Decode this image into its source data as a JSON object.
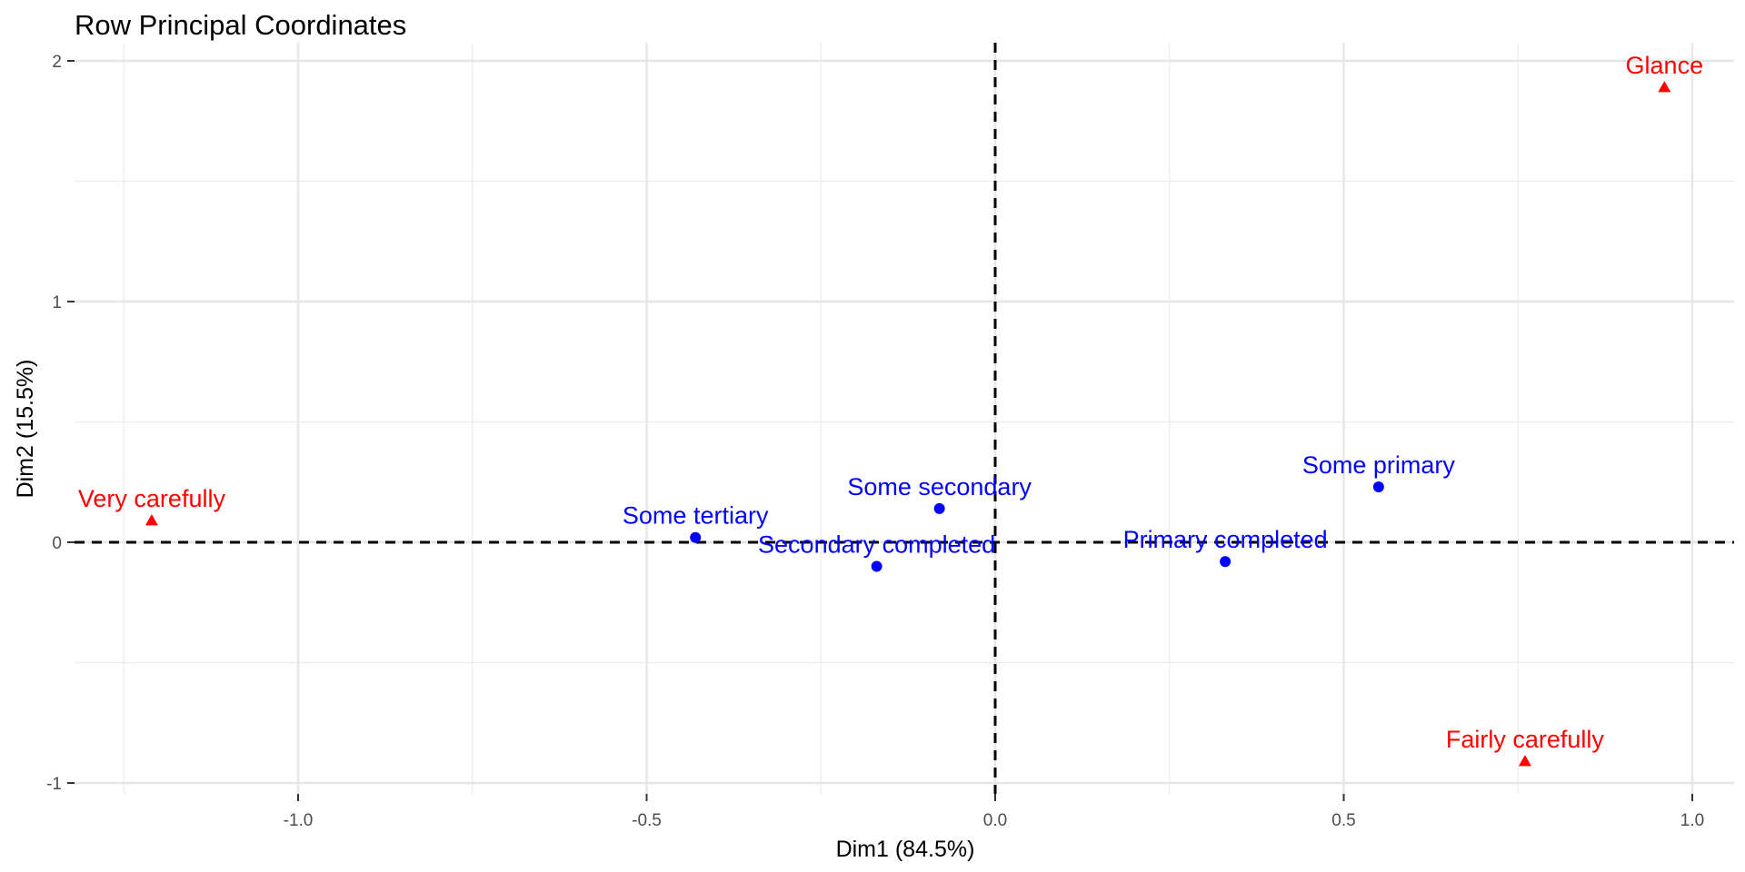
{
  "chart_data": {
    "type": "scatter",
    "title": "Row Principal Coordinates",
    "xlabel": "Dim1 (84.5%)",
    "ylabel": "Dim2 (15.5%)",
    "xlim": [
      -1.31,
      1.07
    ],
    "ylim": [
      -1.0,
      2.0
    ],
    "x_ticks": [
      -1.0,
      -0.5,
      0.0,
      0.5,
      1.0
    ],
    "x_tick_labels": [
      "-1.0",
      "-0.5",
      "0.0",
      "0.5",
      "1.0"
    ],
    "y_ticks": [
      -1,
      0,
      1,
      2
    ],
    "y_tick_labels": [
      "-1",
      "0",
      "1",
      "2"
    ],
    "grid": true,
    "reference_lines": {
      "x": 0,
      "y": 0,
      "style": "dashed"
    },
    "series": [
      {
        "marker": "circle",
        "color": "#0000ff",
        "points": [
          {
            "label": "Some primary",
            "x": 0.55,
            "y": 0.23
          },
          {
            "label": "Primary completed",
            "x": 0.33,
            "y": -0.08
          },
          {
            "label": "Some secondary",
            "x": -0.08,
            "y": 0.14
          },
          {
            "label": "Secondary completed",
            "x": -0.17,
            "y": -0.1
          },
          {
            "label": "Some tertiary",
            "x": -0.43,
            "y": 0.02
          }
        ]
      },
      {
        "marker": "triangle",
        "color": "#ff0000",
        "points": [
          {
            "label": "Glance",
            "x": 0.96,
            "y": 1.89
          },
          {
            "label": "Fairly carefully",
            "x": 0.76,
            "y": -0.91
          },
          {
            "label": "Very carefully",
            "x": -1.21,
            "y": 0.09
          }
        ]
      }
    ]
  }
}
